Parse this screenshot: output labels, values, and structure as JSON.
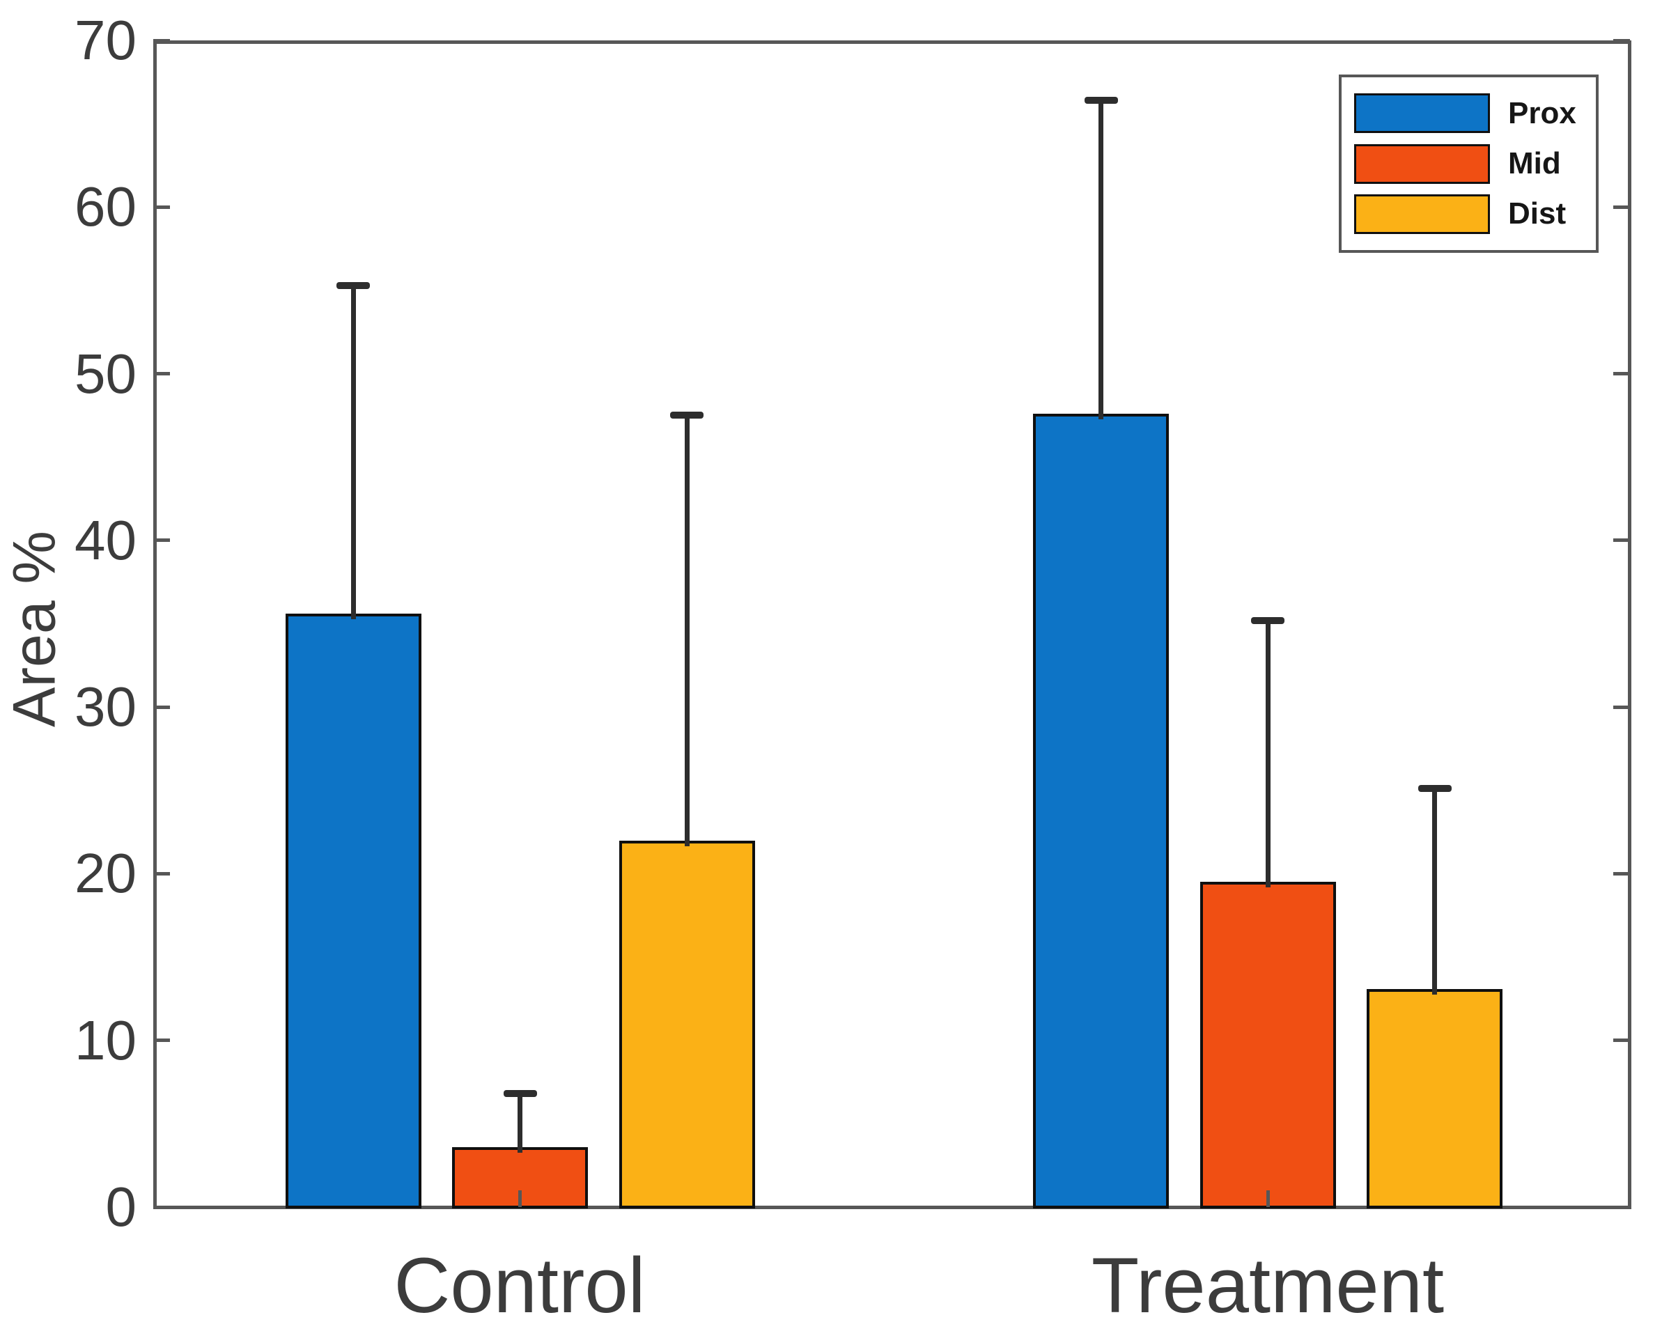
{
  "chart_data": {
    "type": "bar",
    "title": "",
    "xlabel": "",
    "ylabel": "Area %",
    "categories": [
      "Control",
      "Treatment"
    ],
    "series": [
      {
        "name": "Prox",
        "color": "#0d74c6",
        "values": [
          35.6,
          47.6
        ],
        "error_plus": [
          19.7,
          18.8
        ]
      },
      {
        "name": "Mid",
        "color": "#f04f13",
        "values": [
          3.6,
          19.5
        ],
        "error_plus": [
          3.2,
          15.7
        ]
      },
      {
        "name": "Dist",
        "color": "#fbb116",
        "values": [
          22.0,
          13.1
        ],
        "error_plus": [
          25.5,
          12.0
        ]
      }
    ],
    "ylim": [
      0,
      70
    ],
    "yticks": [
      0,
      10,
      20,
      30,
      40,
      50,
      60,
      70
    ],
    "grid": false,
    "legend_position": "top-right",
    "error_bars": "upper-only",
    "colors": {
      "axis_frame": "#575757",
      "tick_text": "#3c3c3c",
      "error_bar": "#2d2d2d",
      "bar_edge": "#0f0f0f",
      "legend_text": "#161616",
      "background": "#ffffff"
    }
  }
}
